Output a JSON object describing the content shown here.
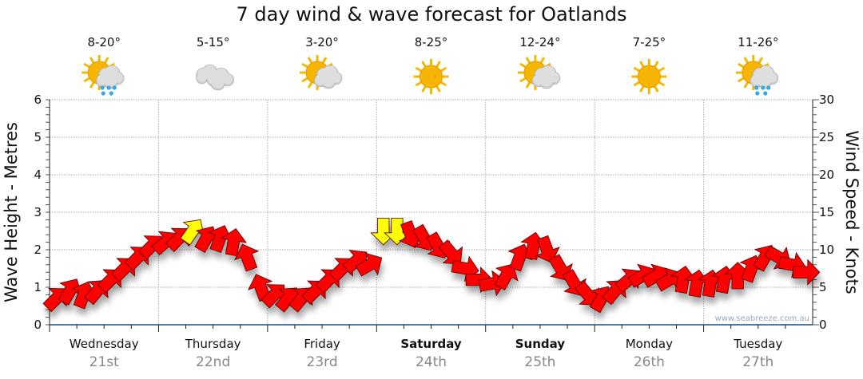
{
  "title": "7 day wind & wave forecast for Oatlands",
  "watermark": "www.seabreeze.com.au",
  "days": [
    {
      "day": "Wednesday",
      "date": "21st",
      "temp": "8-20°",
      "icon": "sun-cloud-rain-icon",
      "bold": false
    },
    {
      "day": "Thursday",
      "date": "22nd",
      "temp": "5-15°",
      "icon": "cloud-icon",
      "bold": false
    },
    {
      "day": "Friday",
      "date": "23rd",
      "temp": "3-20°",
      "icon": "sun-cloud-icon",
      "bold": false
    },
    {
      "day": "Saturday",
      "date": "24th",
      "temp": "8-25°",
      "icon": "sun-icon",
      "bold": true
    },
    {
      "day": "Sunday",
      "date": "25th",
      "temp": "12-24°",
      "icon": "sun-cloud-icon",
      "bold": true
    },
    {
      "day": "Monday",
      "date": "26th",
      "temp": "7-25°",
      "icon": "sun-icon",
      "bold": false
    },
    {
      "day": "Tuesday",
      "date": "27th",
      "temp": "11-26°",
      "icon": "sun-cloud-rain-icon",
      "bold": false
    }
  ],
  "chart_data": {
    "type": "scatter",
    "title": "7 day wind & wave forecast for Oatlands",
    "ylabel_left": "Wave Height - Metres",
    "ylabel_right": "Wind Speed - Knots",
    "ylim_left": [
      0,
      6
    ],
    "ylim_right": [
      0,
      30
    ],
    "yticks_left": [
      "0",
      "1",
      "2",
      "3",
      "4",
      "5",
      "6"
    ],
    "yticks_right": [
      "0",
      "5",
      "10",
      "15",
      "20",
      "25",
      "30"
    ],
    "grid": true,
    "points_per_day": 8,
    "wind_speed_knots": [
      3.5,
      4.5,
      4,
      4.5,
      6,
      7.5,
      9,
      10.5,
      11,
      11.5,
      12.5,
      11.5,
      11.5,
      11,
      9,
      5,
      4,
      3.5,
      3.5,
      4.5,
      6,
      7.5,
      8.5,
      8,
      12.5,
      12.5,
      12,
      11.5,
      10.5,
      9.5,
      7.5,
      6,
      5.5,
      6.5,
      9,
      10.5,
      10,
      7.5,
      5.5,
      4,
      3.5,
      4.5,
      6,
      6.5,
      6.5,
      6,
      6,
      5.5,
      5.5,
      6,
      6.5,
      7.5,
      9,
      9,
      8,
      7
    ],
    "wind_direction_deg": [
      45,
      30,
      20,
      40,
      45,
      45,
      45,
      45,
      50,
      45,
      35,
      30,
      20,
      10,
      340,
      340,
      45,
      40,
      40,
      45,
      45,
      45,
      50,
      60,
      180,
      180,
      160,
      150,
      150,
      140,
      100,
      90,
      80,
      30,
      20,
      10,
      160,
      150,
      150,
      140,
      30,
      40,
      50,
      60,
      60,
      60,
      10,
      10,
      10,
      10,
      0,
      20,
      30,
      120,
      100,
      90
    ],
    "wind_color": [
      "red",
      "red",
      "red",
      "red",
      "red",
      "red",
      "red",
      "red",
      "red",
      "red",
      "yellow",
      "red",
      "red",
      "red",
      "red",
      "red",
      "red",
      "red",
      "red",
      "red",
      "red",
      "red",
      "red",
      "red",
      "yellow",
      "yellow",
      "red",
      "red",
      "red",
      "red",
      "red",
      "red",
      "red",
      "red",
      "red",
      "red",
      "red",
      "red",
      "red",
      "red",
      "red",
      "red",
      "red",
      "red",
      "red",
      "red",
      "red",
      "red",
      "red",
      "red",
      "red",
      "red",
      "red",
      "red",
      "red",
      "red"
    ],
    "colors": {
      "red": "#ff0000",
      "yellow": "#ffff00",
      "axis": "#1a4f7a",
      "grid": "#aaaaaa"
    }
  }
}
